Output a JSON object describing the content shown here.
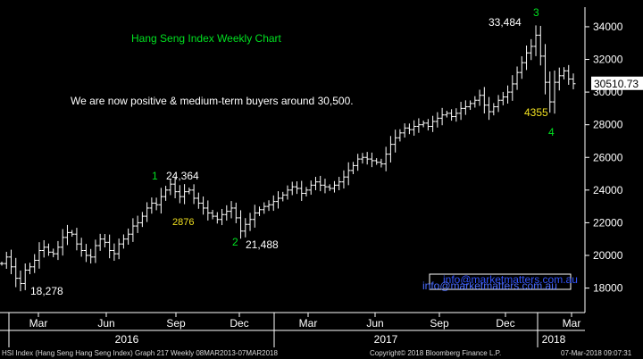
{
  "colors": {
    "background": "#000000",
    "bars": "#ffffff",
    "annotation_green": "#00e020",
    "annotation_yellow": "#f0e020",
    "annotation_white": "#ffffff",
    "title_green": "#00e020",
    "axis": "#ffffff",
    "grid": "#3a3a3a",
    "last_price_label_bg": "#ffffff",
    "last_price_label_text": "#000000"
  },
  "footer": {
    "left": "HSI Index (Hang Seng Hang Seng Index) Graph 217  Weekly 08MAR2013-07MAR2018",
    "center": "Copyright© 2018 Bloomberg Finance L.P.",
    "right": "07-Mar-2018 09:07:31"
  },
  "chart_data": {
    "type": "ohlc",
    "frequency": "weekly",
    "title": "Hang Seng Index Weekly Chart",
    "note": "We are now positive & medium-term buyers around 30,500.",
    "watermark": "info@marketmatters.com.au",
    "y_axis_side": "right",
    "ylim": [
      16500,
      35200
    ],
    "y_ticks": [
      18000,
      20000,
      22000,
      24000,
      26000,
      28000,
      30000,
      32000,
      34000
    ],
    "y_tick_labels": [
      "18000",
      "20000",
      "22000",
      "24000",
      "26000",
      "28000",
      "30000",
      "32000",
      "34000"
    ],
    "last_price": 30510.73,
    "last_price_label": "30510.73",
    "x_month_labels": [
      "Mar",
      "Jun",
      "Sep",
      "Dec",
      "Mar",
      "Jun",
      "Sep",
      "Dec",
      "Mar"
    ],
    "x_year_labels": [
      "2016",
      "2017",
      "2018"
    ],
    "grid": false,
    "annotations": {
      "low_2016": "18,278",
      "wave1_label": "1",
      "wave1_value": "24,364",
      "wave1_retrace": "2876",
      "wave2_label": "2",
      "wave2_value": "21,488",
      "wave3_label": "3",
      "wave3_value": "33,484",
      "wave4_retrace": "4355",
      "wave4_label": "4"
    },
    "close_series": [
      19500,
      19900,
      19300,
      18600,
      18278,
      19100,
      19300,
      19700,
      20300,
      20500,
      20200,
      20100,
      20500,
      21100,
      21400,
      21300,
      20700,
      20300,
      20000,
      19900,
      20600,
      21000,
      20800,
      20300,
      20100,
      20700,
      21000,
      21300,
      21800,
      22000,
      22400,
      22900,
      23200,
      23100,
      23600,
      24000,
      24364,
      23900,
      23600,
      23900,
      24000,
      23500,
      23200,
      22900,
      22600,
      22400,
      22200,
      22500,
      22700,
      22900,
      22300,
      21488,
      21900,
      22200,
      22600,
      22800,
      23000,
      23100,
      23300,
      23500,
      23700,
      24000,
      24200,
      24100,
      23800,
      24000,
      24300,
      24500,
      24300,
      24200,
      24100,
      24300,
      24500,
      24800,
      25200,
      25500,
      25900,
      26000,
      25900,
      25800,
      25700,
      25600,
      26200,
      26800,
      27200,
      27500,
      27800,
      27700,
      27900,
      28000,
      28100,
      27900,
      28200,
      28400,
      28600,
      28700,
      28500,
      28700,
      29000,
      29100,
      29300,
      29500,
      29800,
      29200,
      28800,
      29100,
      29500,
      29700,
      30000,
      30500,
      31200,
      31800,
      32400,
      32800,
      33484,
      32200,
      30600,
      29400,
      30600,
      31000,
      31300,
      30800,
      30510.73
    ]
  }
}
